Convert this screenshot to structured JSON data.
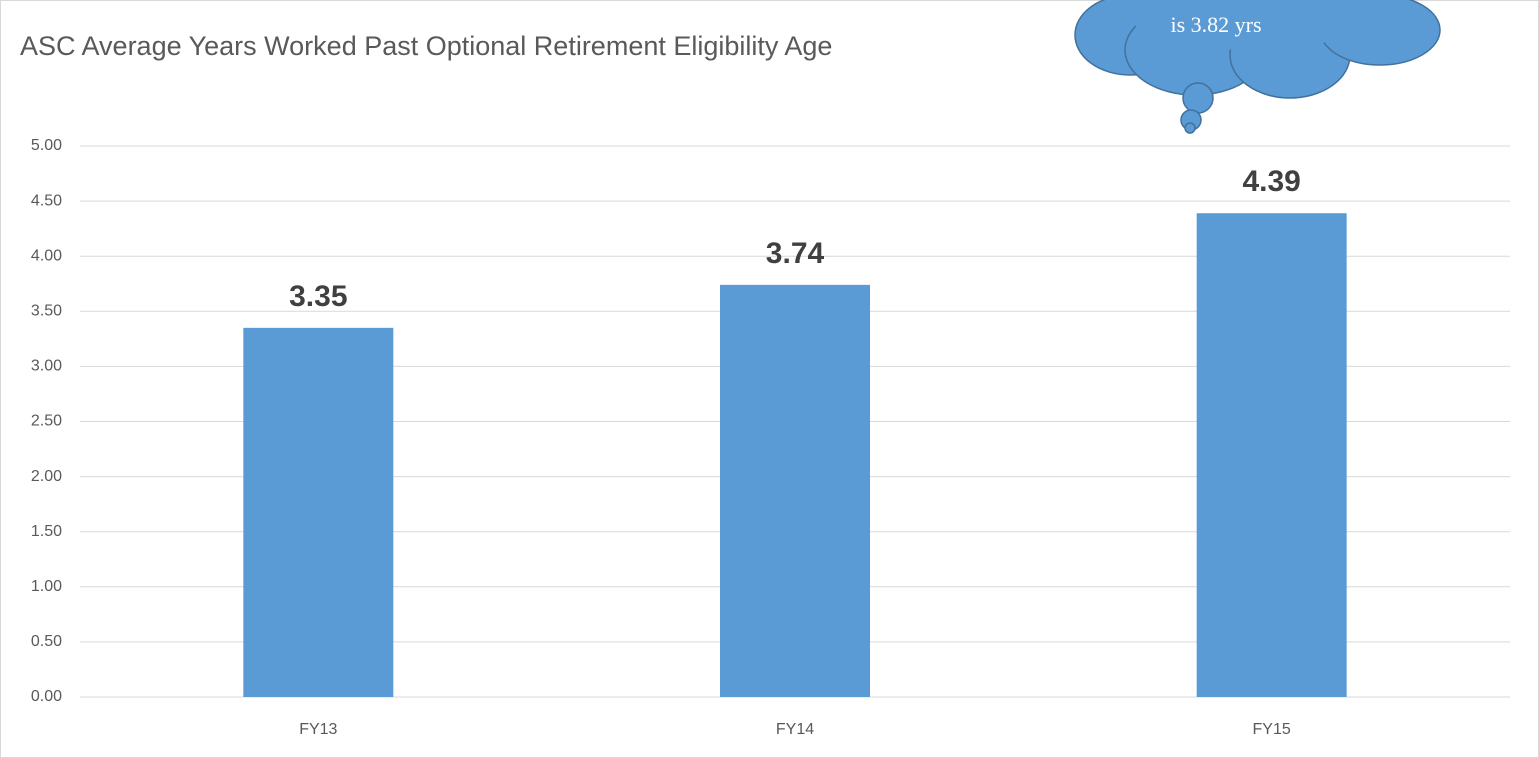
{
  "chart_data": {
    "type": "bar",
    "title": "ASC Average Years Worked Past Optional Retirement Eligibility Age",
    "annotation": "is 3.82 yrs",
    "categories": [
      "FY13",
      "FY14",
      "FY15"
    ],
    "values": [
      3.35,
      3.74,
      4.39
    ],
    "color": "#5b9bd5",
    "ylim": [
      0,
      5
    ],
    "yticks": [
      {
        "value": 0,
        "label": "0.00"
      },
      {
        "value": 0.5,
        "label": "0.50"
      },
      {
        "value": 1,
        "label": "1.00"
      },
      {
        "value": 1.5,
        "label": "1.50"
      },
      {
        "value": 2,
        "label": "2.00"
      },
      {
        "value": 2.5,
        "label": "2.50"
      },
      {
        "value": 3,
        "label": "3.00"
      },
      {
        "value": 3.5,
        "label": "3.50"
      },
      {
        "value": 4,
        "label": "4.00"
      },
      {
        "value": 4.5,
        "label": "4.50"
      },
      {
        "value": 5,
        "label": "5.00"
      }
    ],
    "grid": true
  }
}
